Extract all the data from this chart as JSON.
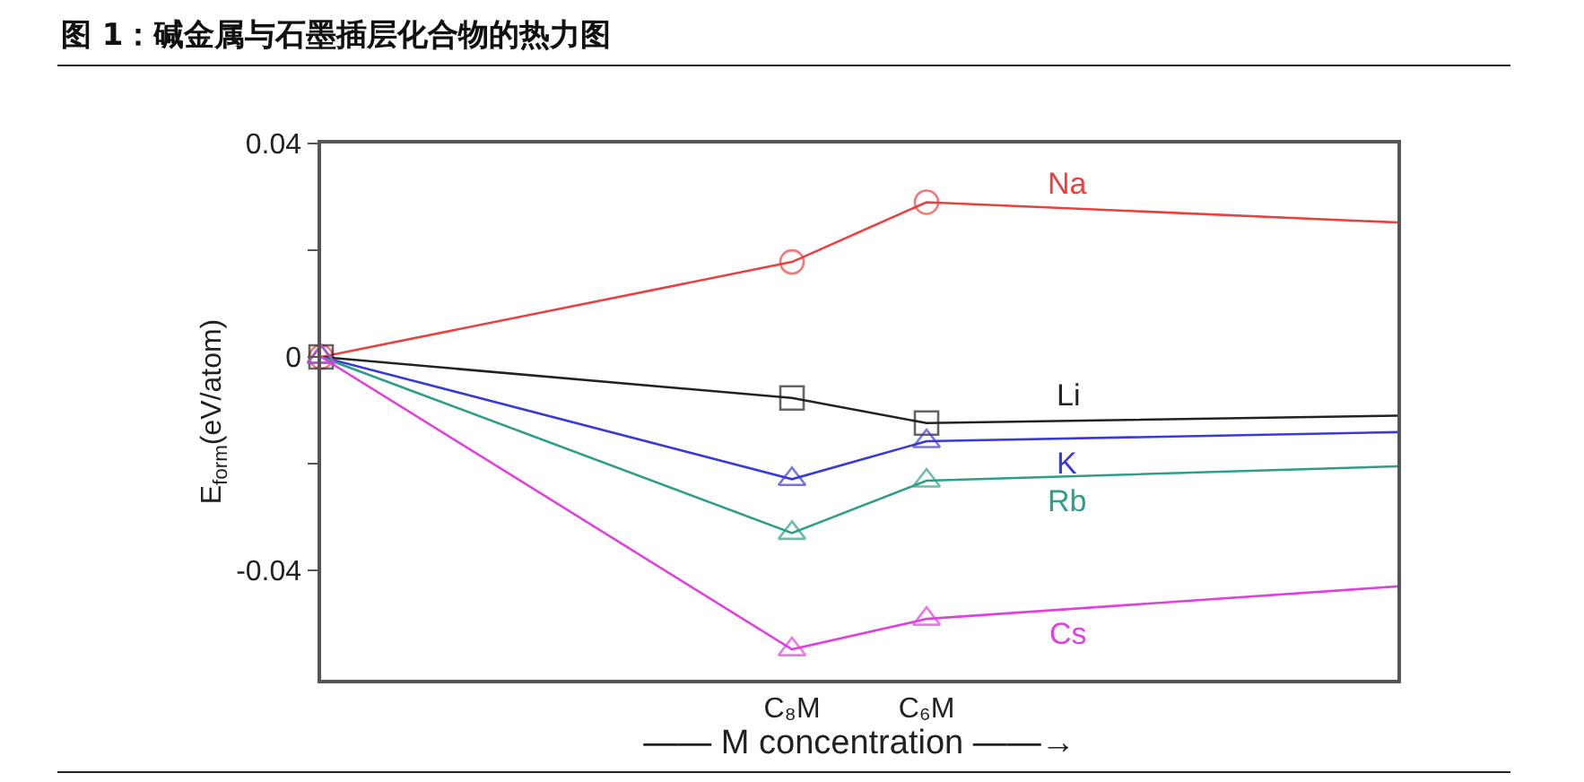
{
  "chart_data": {
    "type": "line",
    "title": "图 1：碱金属与石墨插层化合物的热力图",
    "xlabel": "—— M concentration ——→",
    "ylabel": "E$_{form}$(eV/atom)",
    "categories": [
      null,
      null,
      null,
      null,
      null,
      null,
      null,
      "C₈M",
      null,
      "C₆M",
      null,
      null,
      null,
      null,
      null,
      null,
      null
    ],
    "ylim": [
      -0.0605,
      0.04
    ],
    "yticks": [
      {
        "value": -0.04,
        "label": "-0.04"
      },
      {
        "value": -0.02,
        "label": null
      },
      0,
      {
        "value": 0.02,
        "label": null
      },
      {
        "value": 0.04,
        "label": "0.04"
      }
    ],
    "grid": false,
    "legend": false,
    "line_style": "solid",
    "series": [
      {
        "name": "Na",
        "color": "#e8413f",
        "marker": "circle",
        "values": [
          0,
          null,
          null,
          null,
          null,
          null,
          null,
          0.0178,
          null,
          0.029,
          null,
          null,
          null,
          null,
          null,
          null,
          0.0252
        ]
      },
      {
        "name": "Li",
        "color": "#222222",
        "marker": "square",
        "values": [
          0,
          null,
          null,
          null,
          null,
          null,
          null,
          -0.0077,
          null,
          -0.0124,
          null,
          null,
          null,
          null,
          null,
          null,
          -0.011
        ]
      },
      {
        "name": "K",
        "color": "#3a3ad6",
        "marker": "triangle",
        "values": [
          0,
          null,
          null,
          null,
          null,
          null,
          null,
          -0.0229,
          null,
          -0.0158,
          null,
          null,
          null,
          null,
          null,
          null,
          -0.0141
        ]
      },
      {
        "name": "Rb",
        "color": "#2e9e88",
        "marker": "triangle",
        "values": [
          0,
          null,
          null,
          null,
          null,
          null,
          null,
          -0.033,
          null,
          -0.0232,
          null,
          null,
          null,
          null,
          null,
          null,
          -0.0205
        ]
      },
      {
        "name": "Cs",
        "color": "#e040e0",
        "marker": "triangle",
        "values": [
          0,
          null,
          null,
          null,
          null,
          null,
          null,
          -0.0548,
          null,
          -0.0491,
          null,
          null,
          null,
          null,
          null,
          null,
          -0.043
        ]
      }
    ]
  }
}
